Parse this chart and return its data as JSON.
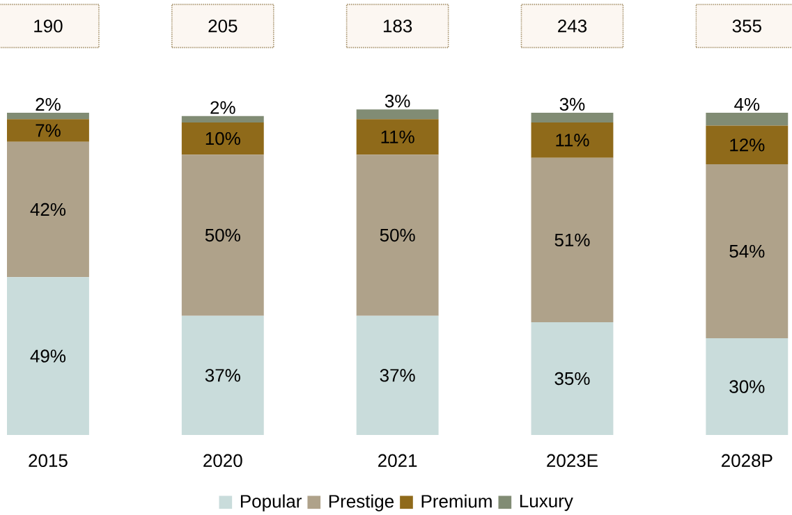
{
  "chart_data": {
    "type": "bar",
    "stacked": true,
    "legend": "bottom",
    "categories": [
      "2015",
      "2020",
      "2021",
      "2023E",
      "2028P"
    ],
    "annotations": [
      "190",
      "205",
      "183",
      "243",
      "355"
    ],
    "series": [
      {
        "name": "Popular",
        "color": "#c9dcdb",
        "values": [
          49,
          37,
          37,
          35,
          30
        ],
        "value_labels": [
          "49%",
          "37%",
          "37%",
          "35%",
          "30%"
        ]
      },
      {
        "name": "Prestige",
        "color": "#afa28a",
        "values": [
          42,
          50,
          50,
          51,
          54
        ],
        "value_labels": [
          "42%",
          "50%",
          "50%",
          "51%",
          "54%"
        ]
      },
      {
        "name": "Premium",
        "color": "#8f6a1a",
        "values": [
          7,
          10,
          11,
          11,
          12
        ],
        "value_labels": [
          "7%",
          "10%",
          "11%",
          "11%",
          "12%"
        ]
      },
      {
        "name": "Luxury",
        "color": "#818c74",
        "values": [
          2,
          2,
          3,
          3,
          4
        ],
        "value_labels": [
          "2%",
          "2%",
          "3%",
          "3%",
          "4%"
        ]
      }
    ]
  }
}
